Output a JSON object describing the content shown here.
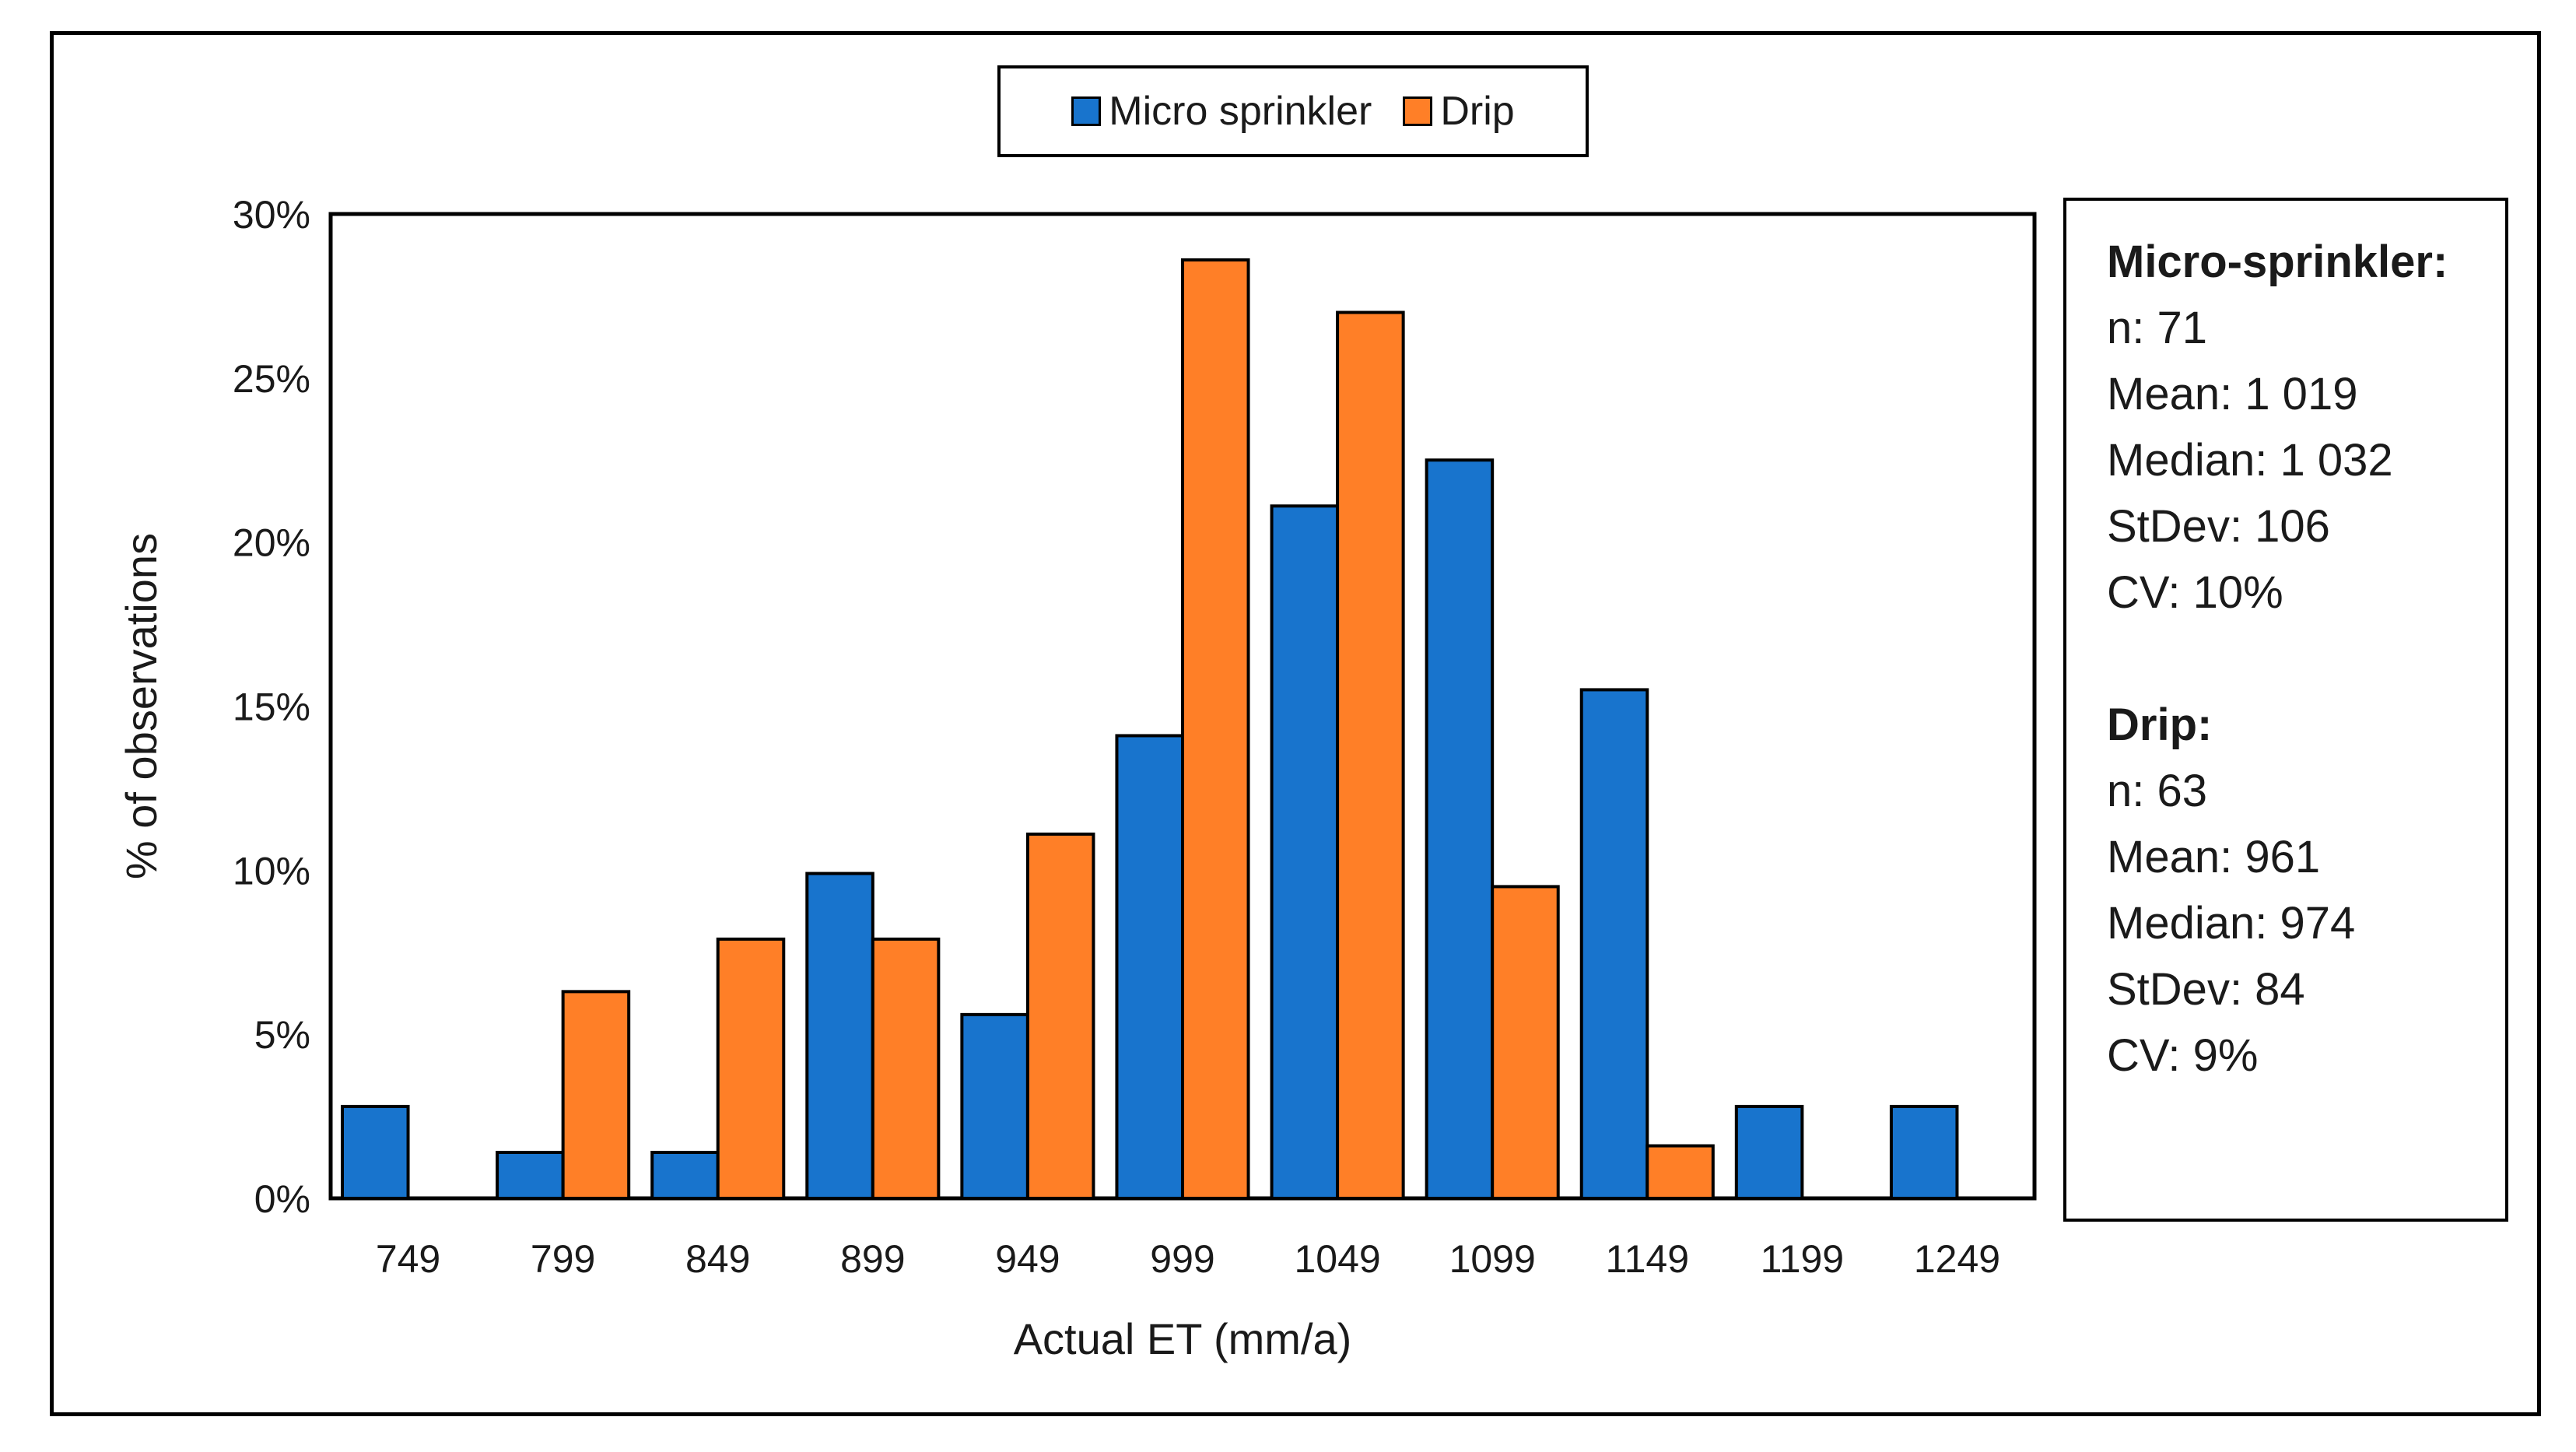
{
  "chart_data": {
    "type": "bar",
    "title": "",
    "xlabel": "Actual ET (mm/a)",
    "ylabel": "% of observations",
    "categories": [
      "749",
      "799",
      "849",
      "899",
      "949",
      "999",
      "1049",
      "1099",
      "1149",
      "1199",
      "1249"
    ],
    "series": [
      {
        "name": "Micro sprinkler",
        "color": "#1874CD",
        "values": [
          2.8,
          1.4,
          1.4,
          9.9,
          5.6,
          14.1,
          21.1,
          22.5,
          15.5,
          2.8,
          2.8
        ]
      },
      {
        "name": "Drip",
        "color": "#FF7F27",
        "values": [
          0,
          6.3,
          7.9,
          7.9,
          11.1,
          28.6,
          27.0,
          9.5,
          1.6,
          0,
          0
        ]
      }
    ],
    "ylim": [
      0,
      30
    ],
    "yticks": [
      "0%",
      "5%",
      "10%",
      "15%",
      "20%",
      "25%",
      "30%"
    ],
    "ytick_values": [
      0,
      5,
      10,
      15,
      20,
      25,
      30
    ],
    "grid": false,
    "legend_position": "top-center"
  },
  "legend": {
    "micro_label": "Micro sprinkler",
    "drip_label": "Drip",
    "micro_color": "#1874CD",
    "drip_color": "#FF7F27"
  },
  "stats": {
    "micro": {
      "title": "Micro-sprinkler:",
      "n": "n: 71",
      "mean": "Mean: 1 019",
      "median": "Median: 1 032",
      "stdev": "StDev: 106",
      "cv": "CV: 10%"
    },
    "drip": {
      "title": "Drip:",
      "n": "n: 63",
      "mean": "Mean: 961",
      "median": "Median: 974",
      "stdev": "StDev: 84",
      "cv": "CV: 9%"
    }
  }
}
